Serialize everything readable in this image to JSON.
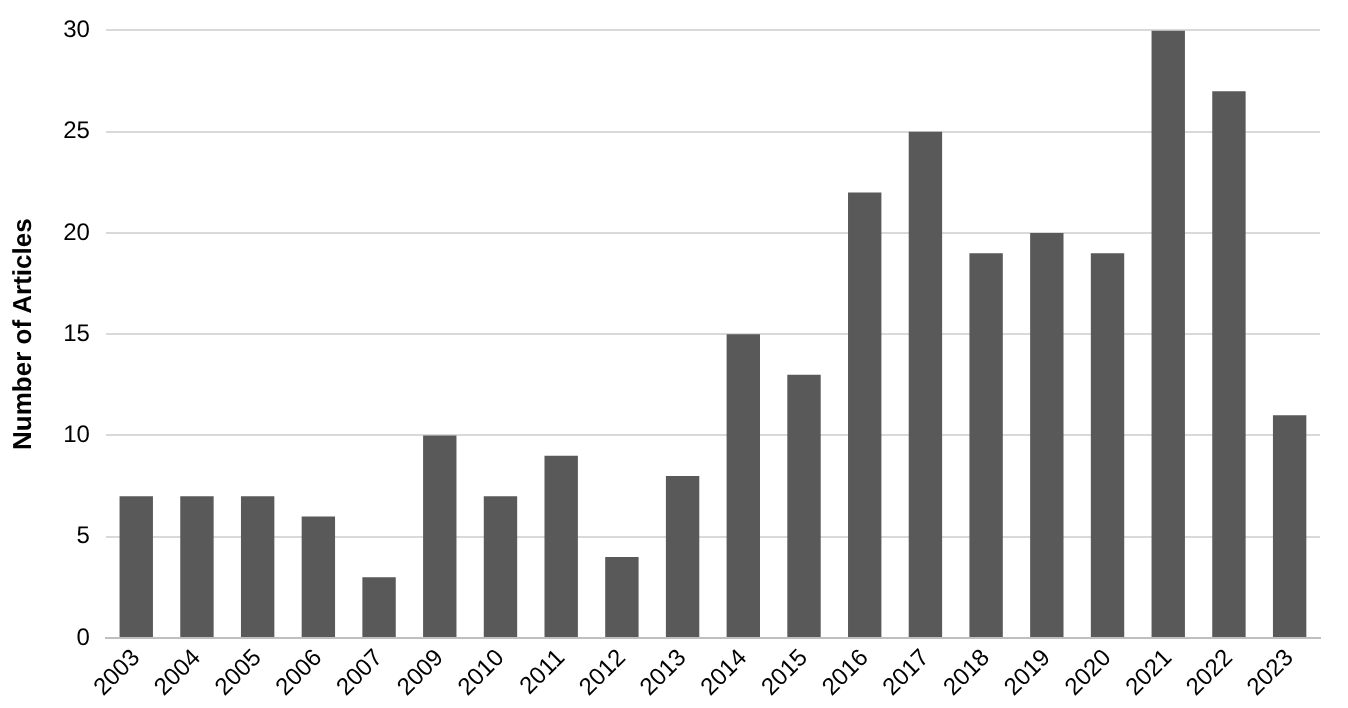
{
  "chart_data": {
    "type": "bar",
    "ylabel": "Number of Articles",
    "categories": [
      "2003",
      "2004",
      "2005",
      "2006",
      "2007",
      "2009",
      "2010",
      "2011",
      "2012",
      "2013",
      "2014",
      "2015",
      "2016",
      "2017",
      "2018",
      "2019",
      "2020",
      "2021",
      "2022",
      "2023"
    ],
    "values": [
      7,
      7,
      7,
      6,
      3,
      10,
      7,
      9,
      4,
      8,
      15,
      13,
      22,
      25,
      19,
      20,
      19,
      30,
      27,
      11
    ],
    "color": "#595959",
    "ylim": [
      0,
      30
    ],
    "yticks": [
      0,
      5,
      10,
      15,
      20,
      25,
      30
    ],
    "grid": "y",
    "legend": false
  }
}
